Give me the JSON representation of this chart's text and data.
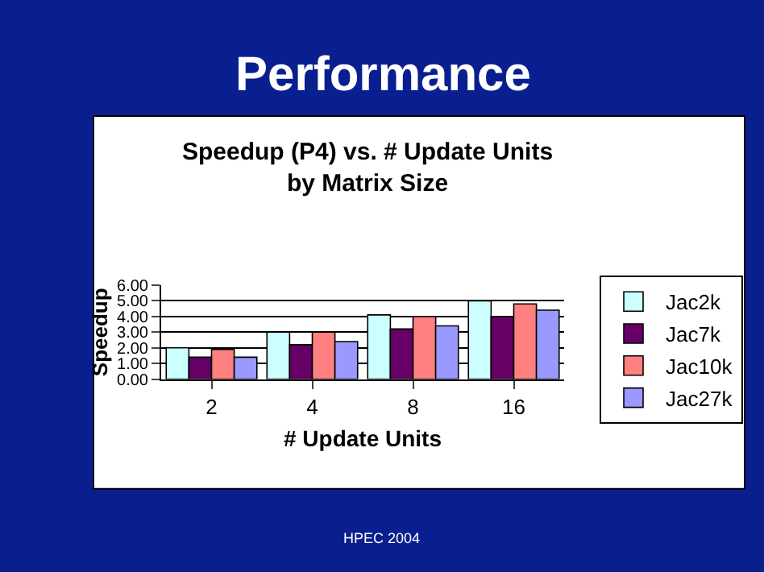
{
  "chart_data": {
    "type": "bar",
    "title": "Performance",
    "subtitle": "Speedup (P4) vs. # Update Units\nby Matrix Size",
    "xlabel": "# Update Units",
    "ylabel": "Speedup",
    "categories": [
      "2",
      "4",
      "8",
      "16"
    ],
    "series": [
      {
        "name": "Jac2k",
        "color": "#ccffff",
        "values": [
          2.0,
          3.0,
          4.1,
          5.0
        ]
      },
      {
        "name": "Jac7k",
        "color": "#660066",
        "values": [
          1.4,
          2.2,
          3.2,
          4.0
        ]
      },
      {
        "name": "Jac10k",
        "color": "#ff8080",
        "values": [
          1.9,
          3.0,
          4.0,
          4.8
        ]
      },
      {
        "name": "Jac27k",
        "color": "#9999ff",
        "values": [
          1.4,
          2.4,
          3.4,
          4.4
        ]
      }
    ],
    "ylim": [
      0,
      6
    ],
    "yticks": [
      {
        "value": 0,
        "label": "0.00"
      },
      {
        "value": 1,
        "label": "1.00"
      },
      {
        "value": 2,
        "label": "2.00"
      },
      {
        "value": 3,
        "label": "3.00"
      },
      {
        "value": 4,
        "label": "4.00"
      },
      {
        "value": 5,
        "label": "5.00"
      },
      {
        "value": 6,
        "label": "6.00"
      }
    ],
    "grid": "y",
    "legend": "right",
    "annotations": [
      "HPEC 2004"
    ]
  }
}
